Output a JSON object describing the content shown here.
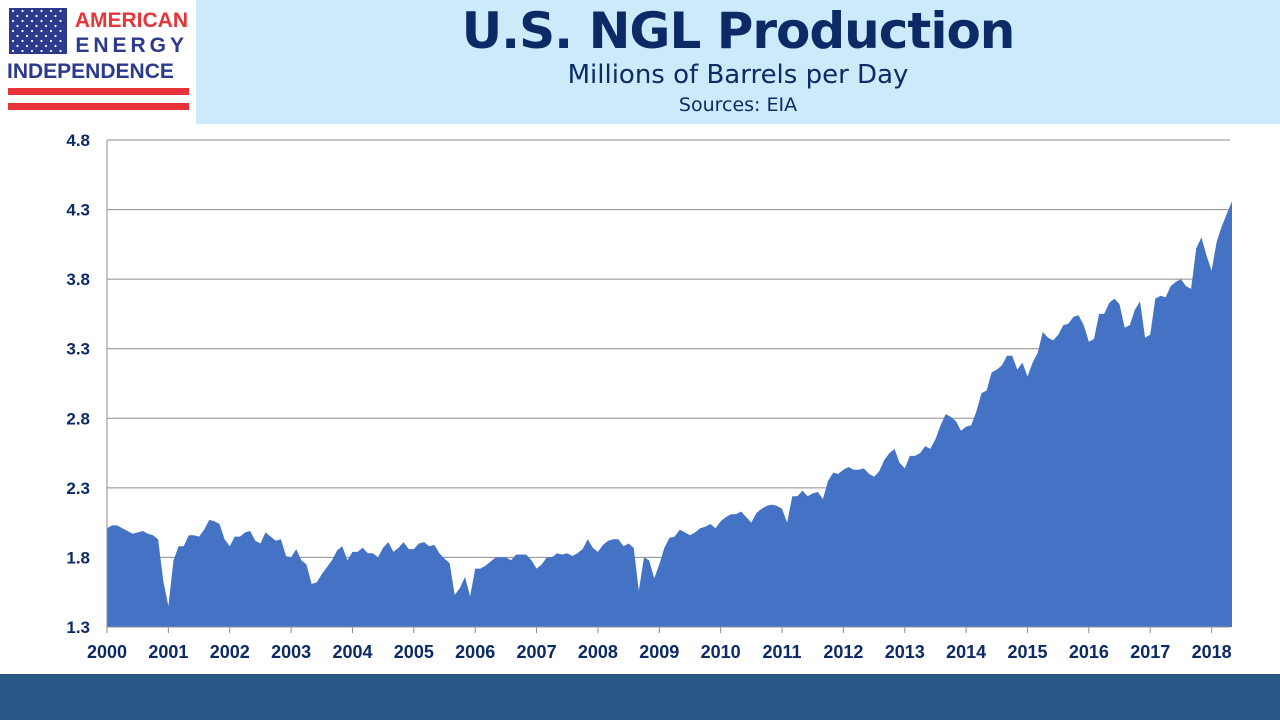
{
  "logo": {
    "line1": "AMERICAN",
    "line2": "ENERGY",
    "line3": "INDEPENDENCE",
    "icon": "us-flag-icon",
    "colors": {
      "blue": "#2b3a8c",
      "red": "#e8333b"
    }
  },
  "header": {
    "title": "U.S. NGL Production",
    "subtitle": "Millions of Barrels per Day",
    "sources": "Sources: EIA"
  },
  "colors": {
    "area": "#4472c4",
    "title_band": "#cdeafb",
    "text": "#0b2a66",
    "footer": "#2b5786"
  },
  "chart_data": {
    "type": "area",
    "title": "",
    "xlabel": "",
    "ylabel": "",
    "ylim": [
      1.3,
      4.8
    ],
    "yticks": [
      1.3,
      1.8,
      2.3,
      2.8,
      3.3,
      3.8,
      4.3,
      4.8
    ],
    "ytick_labels": [
      "1.3",
      "1.8",
      "2.3",
      "2.8",
      "3.3",
      "3.8",
      "4.3",
      "4.8"
    ],
    "xticks": [
      "2000",
      "2001",
      "2002",
      "2003",
      "2004",
      "2005",
      "2006",
      "2007",
      "2008",
      "2009",
      "2010",
      "2011",
      "2012",
      "2013",
      "2014",
      "2015",
      "2016",
      "2017",
      "2018"
    ],
    "grid": "horizontal",
    "legend": "none",
    "series": [
      {
        "start": "2000-01",
        "frequency": "monthly",
        "values": [
          2.01,
          2.03,
          2.03,
          2.01,
          1.99,
          1.97,
          1.98,
          1.99,
          1.97,
          1.96,
          1.93,
          1.63,
          1.45,
          1.78,
          1.88,
          1.88,
          1.96,
          1.96,
          1.95,
          2.0,
          2.07,
          2.06,
          2.04,
          1.93,
          1.88,
          1.95,
          1.95,
          1.98,
          1.99,
          1.92,
          1.9,
          1.98,
          1.95,
          1.92,
          1.93,
          1.81,
          1.8,
          1.86,
          1.78,
          1.75,
          1.61,
          1.62,
          1.68,
          1.73,
          1.78,
          1.85,
          1.88,
          1.78,
          1.84,
          1.84,
          1.87,
          1.83,
          1.83,
          1.8,
          1.87,
          1.91,
          1.84,
          1.87,
          1.91,
          1.86,
          1.86,
          1.9,
          1.91,
          1.88,
          1.89,
          1.83,
          1.79,
          1.76,
          1.53,
          1.58,
          1.66,
          1.52,
          1.72,
          1.72,
          1.74,
          1.77,
          1.8,
          1.8,
          1.8,
          1.78,
          1.82,
          1.82,
          1.82,
          1.78,
          1.72,
          1.75,
          1.8,
          1.8,
          1.83,
          1.82,
          1.83,
          1.81,
          1.83,
          1.86,
          1.93,
          1.87,
          1.84,
          1.89,
          1.92,
          1.93,
          1.93,
          1.88,
          1.9,
          1.87,
          1.56,
          1.8,
          1.78,
          1.65,
          1.75,
          1.87,
          1.94,
          1.95,
          2.0,
          1.98,
          1.96,
          1.98,
          2.01,
          2.02,
          2.04,
          2.01,
          2.06,
          2.09,
          2.11,
          2.11,
          2.13,
          2.09,
          2.05,
          2.12,
          2.15,
          2.17,
          2.18,
          2.17,
          2.15,
          2.05,
          2.24,
          2.24,
          2.28,
          2.24,
          2.26,
          2.27,
          2.22,
          2.35,
          2.41,
          2.4,
          2.43,
          2.45,
          2.43,
          2.43,
          2.44,
          2.4,
          2.38,
          2.42,
          2.5,
          2.55,
          2.58,
          2.48,
          2.44,
          2.53,
          2.53,
          2.55,
          2.6,
          2.58,
          2.65,
          2.75,
          2.83,
          2.81,
          2.78,
          2.71,
          2.74,
          2.75,
          2.85,
          2.98,
          3.0,
          3.13,
          3.15,
          3.18,
          3.25,
          3.25,
          3.15,
          3.2,
          3.1,
          3.2,
          3.27,
          3.42,
          3.38,
          3.36,
          3.4,
          3.47,
          3.48,
          3.53,
          3.54,
          3.47,
          3.35,
          3.37,
          3.55,
          3.55,
          3.63,
          3.66,
          3.62,
          3.45,
          3.47,
          3.58,
          3.64,
          3.38,
          3.4,
          3.66,
          3.68,
          3.67,
          3.75,
          3.78,
          3.8,
          3.75,
          3.73,
          4.02,
          4.1,
          3.97,
          3.86,
          4.07,
          4.18,
          4.27,
          4.36
        ]
      }
    ]
  }
}
